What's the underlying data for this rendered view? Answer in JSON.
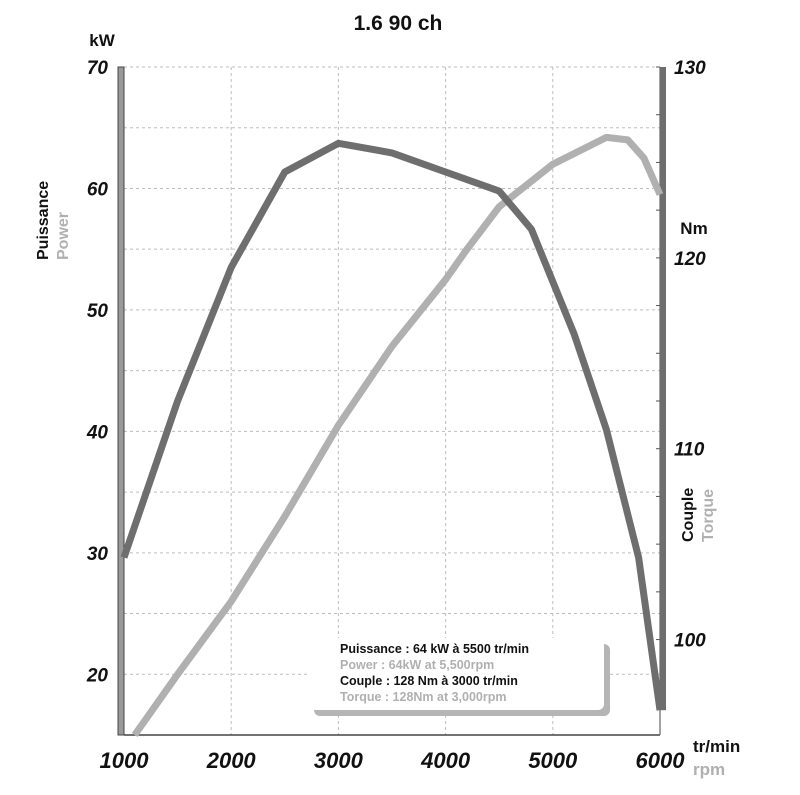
{
  "chart_data": {
    "type": "line",
    "title": "1.6  90 ch",
    "x_unit": {
      "primary": "tr/min",
      "secondary": "rpm"
    },
    "x_ticks": [
      1000,
      2000,
      3000,
      4000,
      5000,
      6000
    ],
    "xlim": [
      1000,
      6000
    ],
    "y_left": {
      "unit": "kW",
      "label_primary": "Puissance",
      "label_secondary": "Power",
      "ticks": [
        20,
        30,
        40,
        50,
        60,
        70
      ],
      "ylim": [
        15,
        70
      ]
    },
    "y_right": {
      "unit": "Nm",
      "label_primary": "Couple",
      "label_secondary": "Torque",
      "ticks": [
        100,
        110,
        120,
        130
      ],
      "ylim": [
        95,
        130
      ]
    },
    "grid": true,
    "series": [
      {
        "key": "power",
        "axis": "left",
        "color": "#b0b0b0",
        "points": [
          [
            1100,
            15
          ],
          [
            1500,
            20
          ],
          [
            2000,
            26
          ],
          [
            2500,
            33
          ],
          [
            3000,
            40.5
          ],
          [
            3500,
            47
          ],
          [
            4000,
            52.5
          ],
          [
            4200,
            55
          ],
          [
            4500,
            58.5
          ],
          [
            5000,
            62
          ],
          [
            5500,
            64.2
          ],
          [
            5700,
            64
          ],
          [
            5850,
            62.5
          ],
          [
            6000,
            59.5
          ]
        ]
      },
      {
        "key": "torque",
        "axis": "right",
        "color": "#6e6e6e",
        "points": [
          [
            1000,
            104.3
          ],
          [
            1500,
            112.5
          ],
          [
            2000,
            119.5
          ],
          [
            2500,
            124.5
          ],
          [
            3000,
            126
          ],
          [
            3500,
            125.5
          ],
          [
            4000,
            124.5
          ],
          [
            4500,
            123.5
          ],
          [
            4800,
            121.5
          ],
          [
            5200,
            116
          ],
          [
            5500,
            111
          ],
          [
            5800,
            104.3
          ],
          [
            6000,
            96.3
          ]
        ]
      }
    ],
    "legend": {
      "placement": "bottom-right",
      "lines": [
        {
          "text": "Puissance : 64 kW à 5500 tr/min",
          "color": "#111111"
        },
        {
          "text": "Power : 64kW at 5,500rpm",
          "color": "#b0b0b0"
        },
        {
          "text": "Couple : 128 Nm à 3000 tr/min",
          "color": "#111111"
        },
        {
          "text": "Torque : 128Nm at 3,000rpm",
          "color": "#b0b0b0"
        }
      ]
    }
  }
}
